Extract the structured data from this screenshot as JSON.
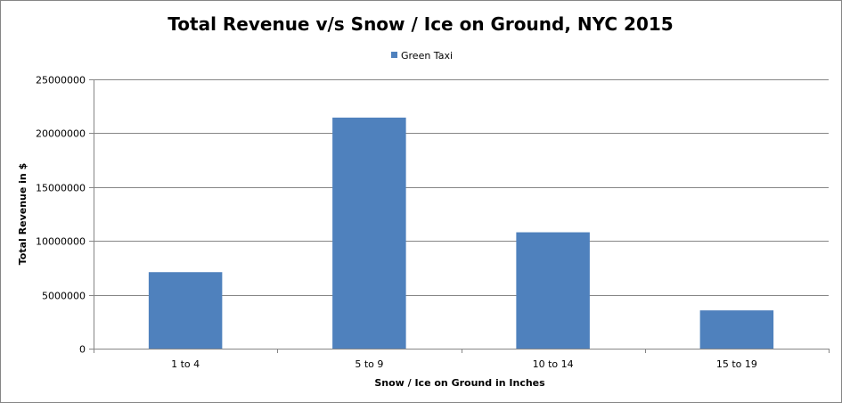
{
  "chart_data": {
    "type": "bar",
    "title": "Total Revenue v/s Snow / Ice on Ground, NYC 2015",
    "xlabel": "Snow / Ice on Ground in Inches",
    "ylabel": "Total Revenue in $",
    "categories": [
      "1 to 4",
      "5 to 9",
      "10 to 14",
      "15 to 19"
    ],
    "series": [
      {
        "name": "Green Taxi",
        "values": [
          7100000,
          21450000,
          10800000,
          3550000
        ],
        "color": "#4f81bd"
      }
    ],
    "ylim": [
      0,
      25000000
    ],
    "yticks": [
      0,
      5000000,
      10000000,
      15000000,
      20000000,
      25000000
    ],
    "ytick_labels": [
      "0",
      "5000000",
      "10000000",
      "15000000",
      "20000000",
      "25000000"
    ],
    "grid": true,
    "legend_position": "top"
  }
}
